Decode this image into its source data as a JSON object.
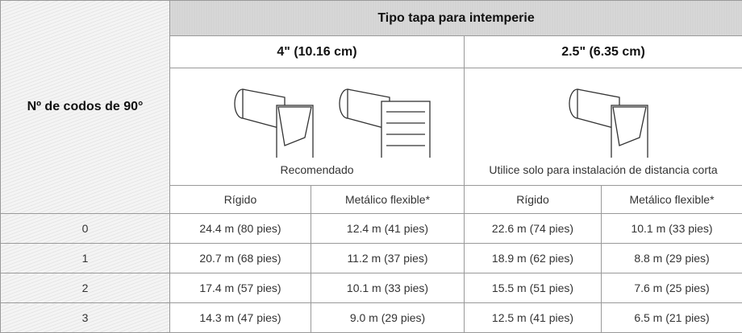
{
  "table": {
    "title": "Tipo tapa para intemperie",
    "row_header": "Nº de codos de 90°",
    "sizes": [
      "4\" (10.16 cm)",
      "2.5\" (6.35 cm)"
    ],
    "captions": [
      "Recomendado",
      "Utilice solo para instalación de distancia corta"
    ],
    "subheaders": [
      "Rígido",
      "Metálico flexible*",
      "Rígido",
      "Metálico flexible*"
    ],
    "rows": [
      [
        "0",
        "24.4 m (80 pies)",
        "12.4 m (41 pies)",
        "22.6 m (74 pies)",
        "10.1 m (33 pies)"
      ],
      [
        "1",
        "20.7 m (68 pies)",
        "11.2 m (37 pies)",
        "18.9 m (62 pies)",
        "8.8 m (29 pies)"
      ],
      [
        "2",
        "17.4 m (57 pies)",
        "10.1 m (33 pies)",
        "15.5 m (51 pies)",
        "7.6 m (25 pies)"
      ],
      [
        "3",
        "14.3 m (47 pies)",
        "9.0 m (29 pies)",
        "12.5 m (41 pies)",
        "6.5 m (21 pies)"
      ]
    ]
  }
}
